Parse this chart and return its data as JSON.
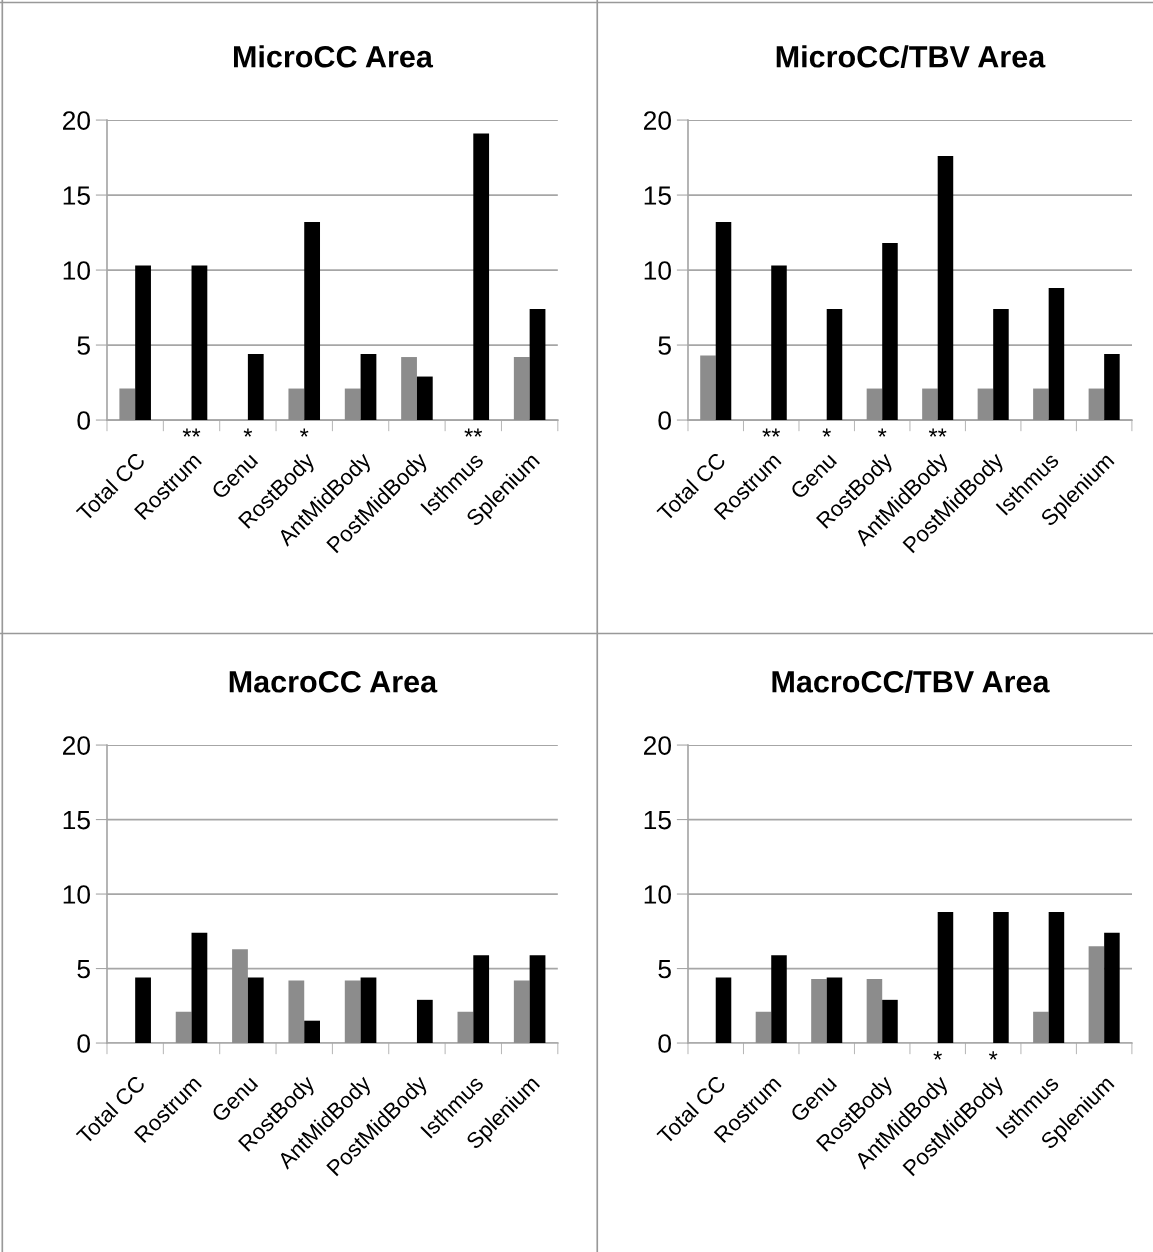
{
  "chart_data": [
    {
      "type": "bar",
      "title": "MicroCC Area",
      "categories": [
        "Total CC",
        "Rostrum",
        "Genu",
        "RostBody",
        "AntMidBody",
        "PostMidBody",
        "Isthmus",
        "Splenium"
      ],
      "series": [
        {
          "color": "#8c8c8c",
          "values": [
            2.1,
            0,
            0,
            2.1,
            2.1,
            4.2,
            0,
            4.2
          ]
        },
        {
          "color": "#000000",
          "values": [
            10.3,
            10.3,
            4.4,
            13.2,
            4.4,
            2.9,
            19.1,
            7.4
          ]
        }
      ],
      "ylim": [
        0,
        20
      ],
      "yticks": [
        0,
        5,
        10,
        15,
        20
      ],
      "grid": "y",
      "annotations": [
        "**",
        "*",
        "*",
        "**"
      ]
    },
    {
      "type": "bar",
      "title": "MicroCC/TBV Area",
      "categories": [
        "Total CC",
        "Rostrum",
        "Genu",
        "RostBody",
        "AntMidBody",
        "PostMidBody",
        "Isthmus",
        "Splenium"
      ],
      "series": [
        {
          "color": "#8c8c8c",
          "values": [
            4.3,
            0,
            0,
            2.1,
            2.1,
            2.1,
            2.1,
            2.1
          ]
        },
        {
          "color": "#000000",
          "values": [
            13.2,
            10.3,
            7.4,
            11.8,
            17.6,
            7.4,
            8.8,
            4.4
          ]
        }
      ],
      "ylim": [
        0,
        20
      ],
      "yticks": [
        0,
        5,
        10,
        15,
        20
      ],
      "grid": "y",
      "annotations": [
        "**",
        "*",
        "*",
        "**"
      ]
    },
    {
      "type": "bar",
      "title": "MacroCC Area",
      "categories": [
        "Total CC",
        "Rostrum",
        "Genu",
        "RostBody",
        "AntMidBody",
        "PostMidBody",
        "Isthmus",
        "Splenium"
      ],
      "series": [
        {
          "color": "#8c8c8c",
          "values": [
            0,
            2.1,
            6.3,
            4.2,
            4.2,
            0,
            2.1,
            4.2
          ]
        },
        {
          "color": "#000000",
          "values": [
            4.4,
            7.4,
            4.4,
            1.5,
            4.4,
            2.9,
            5.9,
            5.9
          ]
        }
      ],
      "ylim": [
        0,
        20
      ],
      "yticks": [
        0,
        5,
        10,
        15,
        20
      ],
      "grid": "y"
    },
    {
      "type": "bar",
      "title": "MacroCC/TBV Area",
      "categories": [
        "Total CC",
        "Rostrum",
        "Genu",
        "RostBody",
        "AntMidBody",
        "PostMidBody",
        "Isthmus",
        "Splenium"
      ],
      "series": [
        {
          "color": "#8c8c8c",
          "values": [
            0,
            2.1,
            4.3,
            4.3,
            0,
            0,
            2.1,
            6.5
          ]
        },
        {
          "color": "#000000",
          "values": [
            4.4,
            5.9,
            4.4,
            2.9,
            8.8,
            8.8,
            8.8,
            7.4
          ]
        }
      ],
      "ylim": [
        0,
        20
      ],
      "yticks": [
        0,
        5,
        10,
        15,
        20
      ],
      "grid": "y",
      "annotations": [
        "*",
        "*"
      ]
    }
  ]
}
